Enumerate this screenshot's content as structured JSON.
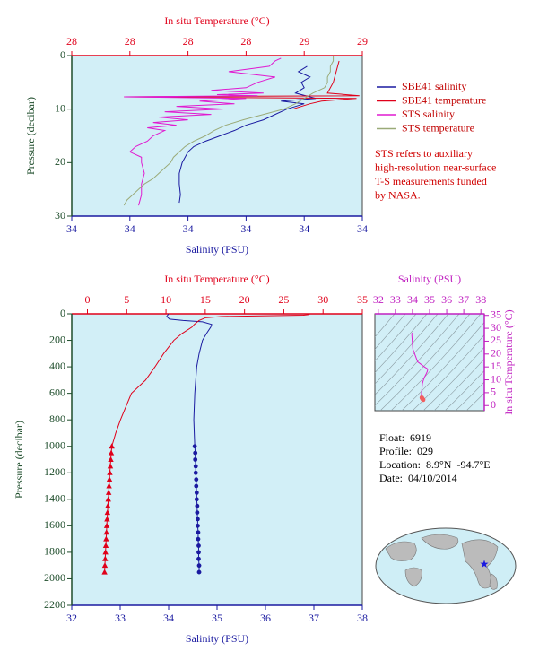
{
  "chart_data": [
    {
      "type": "line",
      "x_label": "Salinity (PSU)",
      "x_color": "#1a1aa0",
      "x_side": "bottom",
      "xlim": [
        33.8,
        34.3
      ],
      "xticks": [
        {
          "value": 33.8,
          "label": "34"
        },
        {
          "value": 33.9,
          "label": "34"
        },
        34,
        {
          "value": 34.1,
          "label": "34"
        },
        {
          "value": 34.2,
          "label": "34"
        },
        {
          "value": 34.3,
          "label": "34"
        }
      ],
      "x2_label": "In situ Temperature (°C)",
      "x2_color": "#e0001a",
      "x2lim": [
        27.8,
        28.8
      ],
      "x2ticks": [
        {
          "value": 27.8,
          "label": "28"
        },
        28,
        {
          "value": 28.2,
          "label": "28"
        },
        {
          "value": 28.4,
          "label": "28"
        },
        {
          "value": 28.6,
          "label": "29"
        },
        {
          "value": 28.8,
          "label": "29"
        }
      ],
      "y_label": "Pressure (decibar)",
      "y_color": "#1e4d2b",
      "y_side": "left",
      "ylim": [
        30,
        0
      ],
      "yticks": [
        0,
        10,
        20,
        30
      ],
      "background": "#d2eff7",
      "legend": "right",
      "series": [
        {
          "name": "SBE41 salinity",
          "color": "#1a1aa0",
          "axis": "x",
          "pressure": [
            2,
            3,
            4,
            5,
            6,
            7,
            8,
            8.5,
            9,
            10,
            11,
            12,
            13,
            14,
            15,
            16,
            17,
            18,
            20,
            22,
            24,
            26,
            27.5
          ],
          "values": [
            34.205,
            34.19,
            34.21,
            34.195,
            34.2,
            34.185,
            34.22,
            34.16,
            34.2,
            34.17,
            34.15,
            34.13,
            34.1,
            34.08,
            34.055,
            34.03,
            34.01,
            34.0,
            33.99,
            33.985,
            33.985,
            33.987,
            33.985
          ]
        },
        {
          "name": "SBE41 temperature",
          "color": "#e0001a",
          "axis": "x2",
          "pressure": [
            1,
            3,
            5,
            7,
            7.5,
            7.7,
            8,
            8.5,
            9,
            10
          ],
          "values": [
            28.72,
            28.71,
            28.7,
            28.68,
            28.79,
            27.98,
            28.78,
            28.66,
            28.62,
            28.56
          ]
        },
        {
          "name": "STS salinity",
          "color": "#e01ad0",
          "axis": "x",
          "pressure": [
            0.5,
            1,
            2,
            3,
            4,
            5,
            6,
            6.5,
            7,
            7.3,
            7.5,
            7.7,
            8,
            8.5,
            9,
            9.5,
            10,
            10.5,
            11,
            11.5,
            12,
            12.5,
            13,
            13.5,
            14,
            15,
            16,
            17,
            18,
            19,
            20,
            22,
            24,
            26,
            28
          ],
          "values": [
            34.16,
            34.15,
            34.14,
            34.07,
            34.15,
            34.12,
            34.1,
            34.04,
            34.13,
            34.05,
            34.12,
            33.89,
            34.1,
            34.02,
            34.08,
            33.98,
            34.06,
            33.96,
            34.04,
            33.95,
            34.0,
            33.94,
            33.98,
            33.93,
            33.96,
            33.94,
            33.93,
            33.91,
            33.9,
            33.92,
            33.92,
            33.925,
            33.92,
            33.92,
            33.915
          ]
        },
        {
          "name": "STS temperature",
          "color": "#9aaa78",
          "axis": "x2",
          "pressure": [
            0,
            1,
            2,
            3,
            4,
            5,
            6,
            7,
            8,
            9,
            10,
            11,
            12,
            13,
            14,
            15,
            16,
            17,
            18,
            19,
            20,
            21,
            22,
            23,
            24,
            25,
            26,
            27,
            28
          ],
          "values": [
            28.7,
            28.7,
            28.69,
            28.69,
            28.68,
            28.68,
            28.67,
            28.63,
            28.6,
            28.57,
            28.53,
            28.46,
            28.39,
            28.33,
            28.29,
            28.26,
            28.22,
            28.19,
            28.17,
            28.15,
            28.14,
            28.12,
            28.1,
            28.08,
            28.05,
            28.03,
            28.01,
            27.99,
            27.98
          ]
        }
      ],
      "note": [
        "STS refers to auxiliary",
        "high-resolution near-surface",
        "T-S measurements funded",
        "by NASA."
      ]
    },
    {
      "type": "line",
      "x_label": "Salinity (PSU)",
      "x_color": "#1a1aa0",
      "x_side": "bottom",
      "xlim": [
        32,
        38
      ],
      "xticks": [
        32,
        33,
        34,
        35,
        36,
        37,
        38
      ],
      "x2_label": "In situ Temperature (°C)",
      "x2_color": "#e0001a",
      "x2lim": [
        -2,
        35
      ],
      "x2ticks": [
        0,
        5,
        10,
        15,
        20,
        25,
        30,
        35
      ],
      "y_label": "Pressure (decibar)",
      "y_color": "#1e4d2b",
      "y_side": "left",
      "ylim": [
        2200,
        0
      ],
      "yticks": [
        0,
        200,
        400,
        600,
        800,
        1000,
        1200,
        1400,
        1600,
        1800,
        2000,
        2200
      ],
      "background": "#d2eff7",
      "series": [
        {
          "color": "#1a1aa0",
          "axis": "x",
          "pressure": [
            0,
            20,
            40,
            50,
            60,
            80,
            100,
            150,
            200,
            300,
            400,
            600,
            800,
            1000
          ],
          "values": [
            34.0,
            33.96,
            34.02,
            34.3,
            34.7,
            34.89,
            34.87,
            34.78,
            34.7,
            34.63,
            34.58,
            34.54,
            34.52,
            34.54
          ]
        },
        {
          "color": "#1a1aa0",
          "axis": "x",
          "marker": "circle",
          "pressure": [
            1000,
            1050,
            1100,
            1150,
            1200,
            1250,
            1300,
            1350,
            1400,
            1450,
            1500,
            1550,
            1600,
            1650,
            1700,
            1750,
            1800,
            1850,
            1900,
            1950
          ],
          "values": [
            34.54,
            34.55,
            34.55,
            34.56,
            34.56,
            34.57,
            34.57,
            34.58,
            34.58,
            34.59,
            34.59,
            34.6,
            34.6,
            34.61,
            34.61,
            34.62,
            34.62,
            34.62,
            34.63,
            34.63
          ]
        },
        {
          "color": "#e0001a",
          "axis": "x2",
          "pressure": [
            0,
            5,
            10,
            15,
            20,
            30,
            50,
            80,
            100,
            150,
            200,
            300,
            400,
            500,
            600,
            700,
            800,
            900,
            1000
          ],
          "values": [
            28.3,
            28.2,
            27.5,
            22.0,
            17.0,
            15.0,
            14.2,
            13.6,
            13.3,
            12.0,
            11.0,
            9.7,
            8.6,
            7.4,
            5.6,
            4.9,
            4.2,
            3.6,
            3.1
          ]
        },
        {
          "color": "#e0001a",
          "axis": "x2",
          "marker": "triangle",
          "pressure": [
            1000,
            1050,
            1100,
            1150,
            1200,
            1250,
            1300,
            1350,
            1400,
            1450,
            1500,
            1550,
            1600,
            1650,
            1700,
            1750,
            1800,
            1850,
            1900,
            1950
          ],
          "values": [
            3.1,
            3.03,
            2.97,
            2.91,
            2.85,
            2.8,
            2.75,
            2.7,
            2.65,
            2.6,
            2.55,
            2.5,
            2.46,
            2.42,
            2.38,
            2.34,
            2.3,
            2.26,
            2.22,
            2.18
          ]
        }
      ]
    },
    {
      "type": "scatter",
      "x_label": "Salinity (PSU)",
      "x_color": "#c020c0",
      "x_side": "top",
      "xlim": [
        31.8,
        38.2
      ],
      "xticks": [
        32,
        33,
        34,
        35,
        36,
        37,
        38
      ],
      "y_label": "In situ Temperature (°C)",
      "y_color": "#c020c0",
      "y_side": "right",
      "ylim": [
        -2,
        35.6
      ],
      "yticks": [
        0,
        5,
        10,
        15,
        20,
        25,
        30,
        35
      ],
      "background": "#d2eff7",
      "series": [
        {
          "color": "#e01ad0",
          "x": [
            34.0,
            33.96,
            34.02,
            34.3,
            34.7,
            34.89,
            34.87,
            34.78,
            34.7,
            34.63,
            34.58,
            34.54,
            34.52,
            34.54
          ],
          "values": [
            28.3,
            27.5,
            22.0,
            17.0,
            15.0,
            14.2,
            13.3,
            12.0,
            11.0,
            9.7,
            8.6,
            5.6,
            4.2,
            3.1
          ]
        },
        {
          "color": "#f06060",
          "marker": "circle",
          "x": [
            34.54,
            34.55,
            34.56,
            34.57,
            34.58,
            34.59,
            34.6,
            34.61,
            34.62,
            34.63
          ],
          "values": [
            3.1,
            2.97,
            2.85,
            2.75,
            2.65,
            2.55,
            2.46,
            2.38,
            2.3,
            2.22
          ]
        }
      ]
    }
  ],
  "float_info": [
    "Float:  6919",
    "Profile:  029",
    "Location:  8.9°N  -94.7°E",
    "Date:  04/10/2014"
  ]
}
